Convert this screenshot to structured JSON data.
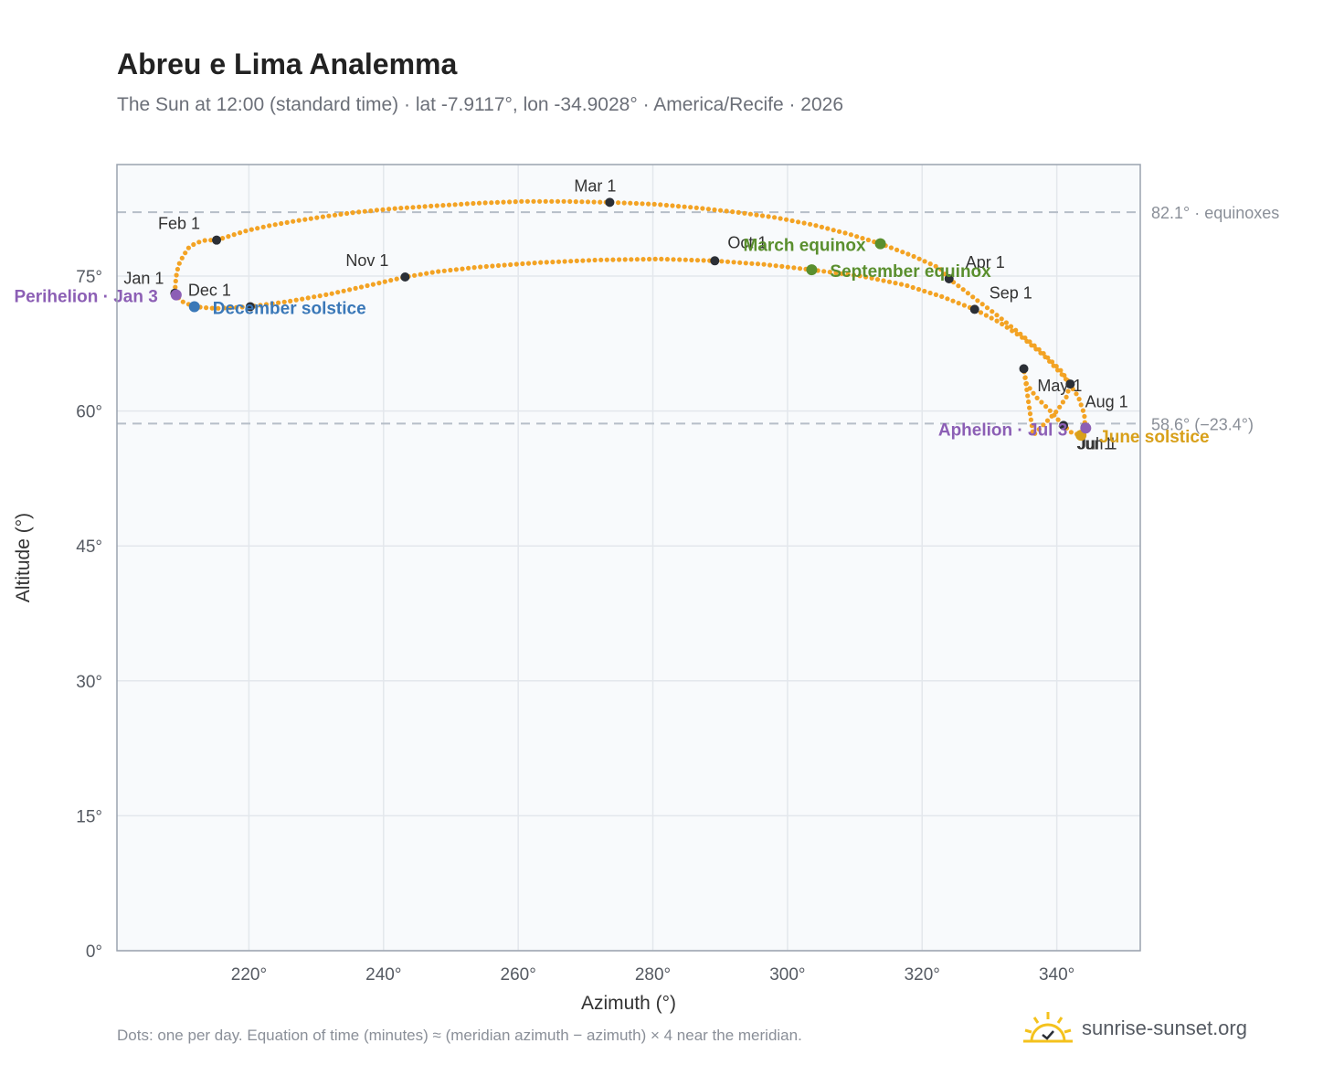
{
  "header": {
    "title": "Abreu e Lima Analemma",
    "subtitle": "The Sun at 12:00 (standard time) · lat -7.9117°, lon -34.9028° · America/Recife · 2026"
  },
  "footer": {
    "note": "Dots: one per day. Equation of time (minutes) ≈ (meridian azimuth − azimuth) × 4 near the meridian.",
    "brand": "sunrise-sunset.org"
  },
  "colors": {
    "curve": "#f3a324",
    "month_marker": "#2b2f36",
    "equinox": "#5a8f2e",
    "december_solstice": "#3a78b8",
    "june_solstice": "#d8a01a",
    "apsis": "#8c5fb5",
    "reference_line": "#b6bec8",
    "plot_bg": "#f8fafc",
    "grid": "#e3e7ec"
  },
  "chart_data": {
    "type": "scatter",
    "xlabel": "Azimuth (°)",
    "ylabel": "Altitude (°)",
    "xlim": [
      200.4,
      352.4
    ],
    "ylim": [
      0,
      87.4
    ],
    "x_ticks": [
      220,
      240,
      260,
      280,
      300,
      320,
      340
    ],
    "x_tick_labels": [
      "220°",
      "240°",
      "260°",
      "280°",
      "300°",
      "320°",
      "340°"
    ],
    "y_ticks": [
      0,
      15,
      30,
      45,
      60,
      75
    ],
    "y_tick_labels": [
      "0°",
      "15°",
      "30°",
      "45°",
      "60°",
      "75°"
    ],
    "grid": true,
    "reference_lines": [
      {
        "y": 82.1,
        "label": "82.1° · equinoxes"
      },
      {
        "y": 58.6,
        "label": "58.6° (−23.4°)"
      }
    ],
    "month_markers": [
      {
        "label": "Jan 1",
        "x": 209.0,
        "y": 73.1
      },
      {
        "label": "Feb 1",
        "x": 215.2,
        "y": 79.0
      },
      {
        "label": "Mar 1",
        "x": 273.6,
        "y": 83.2
      },
      {
        "label": "Apr 1",
        "x": 324.0,
        "y": 74.7
      },
      {
        "label": "May 1",
        "x": 342.0,
        "y": 63.0
      },
      {
        "label": "Jun 1",
        "x": 335.1,
        "y": 64.7
      },
      {
        "label": "Jul 1",
        "x": 341.0,
        "y": 58.4
      },
      {
        "label": "Aug 1",
        "x": 344.2,
        "y": 58.2
      },
      {
        "label": "Sep 1",
        "x": 327.8,
        "y": 71.3
      },
      {
        "label": "Oct 1",
        "x": 289.2,
        "y": 76.7
      },
      {
        "label": "Nov 1",
        "x": 243.2,
        "y": 74.9
      },
      {
        "label": "Dec 1",
        "x": 220.2,
        "y": 71.6
      }
    ],
    "events": [
      {
        "label": "March equinox",
        "x": 313.8,
        "y": 78.6
      },
      {
        "label": "September equinox",
        "x": 303.6,
        "y": 75.7
      },
      {
        "label": "December solstice",
        "x": 211.9,
        "y": 71.6
      },
      {
        "label": "June solstice",
        "x": 343.6,
        "y": 57.3
      },
      {
        "label": "Perihelion · Jan 3",
        "x": 209.2,
        "y": 72.9
      },
      {
        "label": "Aphelion · Jul 3",
        "x": 344.3,
        "y": 58.1
      }
    ],
    "series": [
      {
        "x": [
          209.0,
          209.1,
          209.3,
          209.7,
          210.3,
          211.1,
          212.2,
          213.6,
          215.2,
          217.3,
          219.9,
          223.0,
          226.7,
          231.0,
          235.9,
          241.4,
          247.4,
          253.8,
          260.4,
          267.0,
          273.6,
          280.1,
          286.4,
          292.5,
          298.3,
          303.8,
          309.0,
          313.8,
          318.4,
          322.6,
          324.0,
          327.5,
          331.2,
          334.7,
          337.9,
          340.6,
          342.0,
          341.4,
          340.0,
          338.2,
          336.5,
          335.1,
          335.5,
          337.0,
          338.8,
          340.0,
          341.0,
          342.2,
          343.6,
          344.2,
          344.1,
          343.2,
          341.2,
          338.3,
          335.0,
          331.4,
          327.8,
          323.0,
          317.5,
          311.0,
          303.6,
          296.5,
          289.2,
          281.0,
          272.0,
          263.0,
          254.0,
          248.0,
          243.2,
          238.0,
          232.0,
          226.0,
          220.2,
          215.0,
          211.9,
          210.0,
          209.2,
          209.0
        ],
        "y": [
          73.1,
          74.3,
          75.5,
          76.5,
          77.3,
          78.2,
          78.7,
          79.0,
          79.0,
          79.5,
          80.1,
          80.6,
          81.1,
          81.6,
          82.1,
          82.5,
          82.8,
          83.1,
          83.3,
          83.3,
          83.2,
          83.0,
          82.6,
          82.1,
          81.5,
          80.7,
          79.7,
          78.6,
          77.3,
          75.9,
          74.7,
          72.7,
          70.6,
          68.5,
          66.5,
          64.5,
          63.0,
          61.5,
          60.0,
          58.6,
          57.3,
          64.7,
          63.0,
          61.5,
          60.2,
          59.2,
          58.4,
          57.6,
          57.3,
          58.2,
          59.6,
          61.6,
          63.7,
          66.0,
          68.1,
          69.9,
          71.3,
          72.7,
          74.0,
          75.0,
          75.7,
          76.3,
          76.7,
          76.9,
          76.8,
          76.5,
          76.0,
          75.5,
          74.9,
          74.0,
          73.0,
          72.2,
          71.6,
          71.4,
          71.6,
          72.2,
          72.9,
          73.1
        ]
      }
    ]
  }
}
